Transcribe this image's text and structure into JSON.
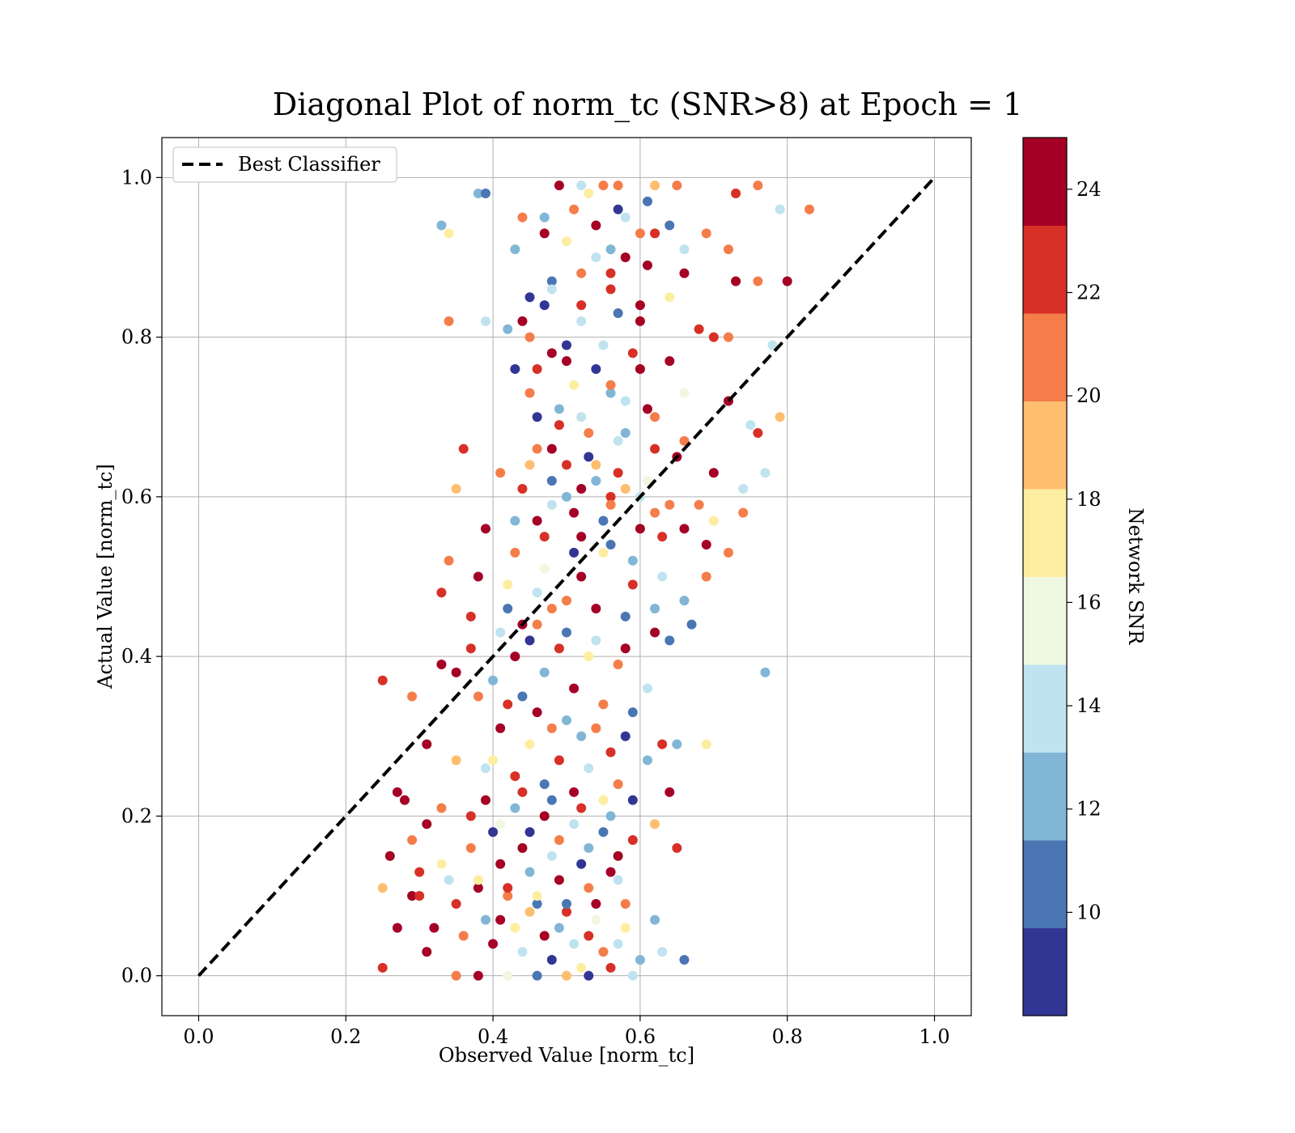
{
  "chart_data": {
    "type": "scatter",
    "title": "Diagonal Plot of norm_tc (SNR>8) at Epoch = 1",
    "xlabel": "Observed Value [norm_tc]",
    "ylabel": "Actual Value [norm_tc]",
    "xlim": [
      -0.05,
      1.05
    ],
    "ylim": [
      -0.05,
      1.05
    ],
    "x_ticks": [
      "0.0",
      "0.2",
      "0.4",
      "0.6",
      "0.8",
      "1.0"
    ],
    "y_ticks": [
      "0.0",
      "0.2",
      "0.4",
      "0.6",
      "0.8",
      "1.0"
    ],
    "grid": true,
    "legend": {
      "position": "top-left",
      "entries": [
        "Best Classifier"
      ]
    },
    "reference_line": {
      "name": "Best Classifier",
      "style": "dashed",
      "color": "#000000",
      "x": [
        0.0,
        1.0
      ],
      "y": [
        0.0,
        1.0
      ]
    },
    "colorbar": {
      "label": "Network SNR",
      "range": [
        8,
        25
      ],
      "ticks": [
        "10",
        "12",
        "14",
        "16",
        "18",
        "20",
        "22",
        "24"
      ],
      "colors": [
        "#313695",
        "#4a76b4",
        "#81b6d6",
        "#bfe3ef",
        "#eff8e0",
        "#fdeda0",
        "#fdbe6f",
        "#f57d4a",
        "#d73027",
        "#a50026"
      ]
    },
    "points": [
      [
        0.52,
        0.99,
        14
      ],
      [
        0.55,
        0.99,
        20
      ],
      [
        0.57,
        0.99,
        20
      ],
      [
        0.62,
        0.99,
        19
      ],
      [
        0.65,
        0.99,
        21
      ],
      [
        0.76,
        0.99,
        20
      ],
      [
        0.49,
        0.99,
        24
      ],
      [
        0.53,
        0.98,
        17
      ],
      [
        0.38,
        0.98,
        12
      ],
      [
        0.39,
        0.98,
        10
      ],
      [
        0.57,
        0.96,
        9
      ],
      [
        0.61,
        0.97,
        10
      ],
      [
        0.64,
        0.94,
        10
      ],
      [
        0.83,
        0.96,
        20
      ],
      [
        0.79,
        0.96,
        14
      ],
      [
        0.73,
        0.98,
        22
      ],
      [
        0.44,
        0.95,
        21
      ],
      [
        0.47,
        0.93,
        24
      ],
      [
        0.51,
        0.96,
        20
      ],
      [
        0.33,
        0.94,
        12
      ],
      [
        0.34,
        0.93,
        18
      ],
      [
        0.43,
        0.91,
        12
      ],
      [
        0.54,
        0.9,
        14
      ],
      [
        0.58,
        0.9,
        24
      ],
      [
        0.66,
        0.91,
        14
      ],
      [
        0.69,
        0.93,
        20
      ],
      [
        0.72,
        0.91,
        21
      ],
      [
        0.45,
        0.85,
        9
      ],
      [
        0.48,
        0.87,
        10
      ],
      [
        0.56,
        0.88,
        22
      ],
      [
        0.61,
        0.89,
        24
      ],
      [
        0.66,
        0.88,
        24
      ],
      [
        0.73,
        0.87,
        24
      ],
      [
        0.76,
        0.87,
        21
      ],
      [
        0.8,
        0.87,
        24
      ],
      [
        0.47,
        0.84,
        9
      ],
      [
        0.52,
        0.84,
        22
      ],
      [
        0.57,
        0.83,
        10
      ],
      [
        0.6,
        0.82,
        24
      ],
      [
        0.68,
        0.81,
        22
      ],
      [
        0.34,
        0.82,
        21
      ],
      [
        0.39,
        0.82,
        14
      ],
      [
        0.42,
        0.81,
        12
      ],
      [
        0.45,
        0.8,
        20
      ],
      [
        0.5,
        0.79,
        9
      ],
      [
        0.55,
        0.79,
        14
      ],
      [
        0.59,
        0.78,
        22
      ],
      [
        0.64,
        0.77,
        24
      ],
      [
        0.7,
        0.8,
        22
      ],
      [
        0.72,
        0.8,
        21
      ],
      [
        0.78,
        0.79,
        14
      ],
      [
        0.43,
        0.76,
        9
      ],
      [
        0.46,
        0.76,
        22
      ],
      [
        0.51,
        0.74,
        18
      ],
      [
        0.56,
        0.73,
        12
      ],
      [
        0.61,
        0.71,
        24
      ],
      [
        0.66,
        0.73,
        16
      ],
      [
        0.72,
        0.72,
        24
      ],
      [
        0.75,
        0.69,
        14
      ],
      [
        0.79,
        0.7,
        19
      ],
      [
        0.46,
        0.7,
        9
      ],
      [
        0.49,
        0.69,
        22
      ],
      [
        0.53,
        0.68,
        20
      ],
      [
        0.57,
        0.67,
        14
      ],
      [
        0.62,
        0.66,
        22
      ],
      [
        0.66,
        0.67,
        21
      ],
      [
        0.7,
        0.63,
        24
      ],
      [
        0.76,
        0.68,
        22
      ],
      [
        0.77,
        0.63,
        14
      ],
      [
        0.36,
        0.66,
        22
      ],
      [
        0.41,
        0.63,
        21
      ],
      [
        0.45,
        0.64,
        19
      ],
      [
        0.48,
        0.62,
        10
      ],
      [
        0.52,
        0.61,
        24
      ],
      [
        0.56,
        0.6,
        22
      ],
      [
        0.6,
        0.6,
        14
      ],
      [
        0.64,
        0.59,
        20
      ],
      [
        0.68,
        0.59,
        20
      ],
      [
        0.74,
        0.58,
        21
      ],
      [
        0.35,
        0.61,
        19
      ],
      [
        0.39,
        0.56,
        24
      ],
      [
        0.43,
        0.57,
        12
      ],
      [
        0.47,
        0.55,
        22
      ],
      [
        0.51,
        0.53,
        9
      ],
      [
        0.55,
        0.53,
        18
      ],
      [
        0.59,
        0.52,
        12
      ],
      [
        0.63,
        0.55,
        22
      ],
      [
        0.69,
        0.54,
        24
      ],
      [
        0.72,
        0.53,
        20
      ],
      [
        0.34,
        0.52,
        21
      ],
      [
        0.38,
        0.5,
        24
      ],
      [
        0.42,
        0.49,
        18
      ],
      [
        0.46,
        0.48,
        14
      ],
      [
        0.5,
        0.47,
        20
      ],
      [
        0.54,
        0.46,
        24
      ],
      [
        0.58,
        0.45,
        10
      ],
      [
        0.62,
        0.43,
        24
      ],
      [
        0.66,
        0.47,
        12
      ],
      [
        0.69,
        0.5,
        21
      ],
      [
        0.33,
        0.48,
        22
      ],
      [
        0.37,
        0.45,
        22
      ],
      [
        0.41,
        0.43,
        14
      ],
      [
        0.45,
        0.42,
        9
      ],
      [
        0.49,
        0.41,
        22
      ],
      [
        0.53,
        0.4,
        18
      ],
      [
        0.57,
        0.39,
        20
      ],
      [
        0.61,
        0.36,
        14
      ],
      [
        0.64,
        0.42,
        10
      ],
      [
        0.77,
        0.38,
        12
      ],
      [
        0.35,
        0.38,
        24
      ],
      [
        0.38,
        0.35,
        20
      ],
      [
        0.42,
        0.34,
        22
      ],
      [
        0.46,
        0.33,
        24
      ],
      [
        0.5,
        0.32,
        12
      ],
      [
        0.54,
        0.31,
        21
      ],
      [
        0.58,
        0.3,
        9
      ],
      [
        0.63,
        0.29,
        22
      ],
      [
        0.65,
        0.29,
        12
      ],
      [
        0.69,
        0.29,
        18
      ],
      [
        0.25,
        0.37,
        22
      ],
      [
        0.29,
        0.35,
        21
      ],
      [
        0.31,
        0.29,
        24
      ],
      [
        0.35,
        0.27,
        19
      ],
      [
        0.39,
        0.26,
        14
      ],
      [
        0.43,
        0.25,
        22
      ],
      [
        0.47,
        0.24,
        10
      ],
      [
        0.51,
        0.23,
        24
      ],
      [
        0.55,
        0.22,
        18
      ],
      [
        0.59,
        0.22,
        9
      ],
      [
        0.64,
        0.23,
        24
      ],
      [
        0.27,
        0.23,
        24
      ],
      [
        0.28,
        0.22,
        24
      ],
      [
        0.33,
        0.21,
        21
      ],
      [
        0.37,
        0.2,
        22
      ],
      [
        0.41,
        0.19,
        16
      ],
      [
        0.45,
        0.18,
        9
      ],
      [
        0.49,
        0.17,
        20
      ],
      [
        0.53,
        0.16,
        12
      ],
      [
        0.57,
        0.15,
        24
      ],
      [
        0.62,
        0.19,
        19
      ],
      [
        0.26,
        0.15,
        24
      ],
      [
        0.3,
        0.13,
        22
      ],
      [
        0.34,
        0.12,
        14
      ],
      [
        0.38,
        0.11,
        24
      ],
      [
        0.42,
        0.1,
        20
      ],
      [
        0.46,
        0.09,
        10
      ],
      [
        0.5,
        0.08,
        22
      ],
      [
        0.54,
        0.07,
        16
      ],
      [
        0.58,
        0.09,
        21
      ],
      [
        0.65,
        0.16,
        22
      ],
      [
        0.25,
        0.11,
        19
      ],
      [
        0.29,
        0.1,
        24
      ],
      [
        0.32,
        0.06,
        24
      ],
      [
        0.36,
        0.05,
        20
      ],
      [
        0.4,
        0.04,
        24
      ],
      [
        0.44,
        0.03,
        14
      ],
      [
        0.48,
        0.02,
        9
      ],
      [
        0.52,
        0.01,
        18
      ],
      [
        0.56,
        0.01,
        22
      ],
      [
        0.6,
        0.02,
        12
      ],
      [
        0.25,
        0.01,
        22
      ],
      [
        0.27,
        0.06,
        24
      ],
      [
        0.31,
        0.03,
        24
      ],
      [
        0.35,
        0.0,
        20
      ],
      [
        0.38,
        0.0,
        24
      ],
      [
        0.42,
        0.0,
        16
      ],
      [
        0.46,
        0.0,
        10
      ],
      [
        0.5,
        0.0,
        19
      ],
      [
        0.53,
        0.0,
        9
      ],
      [
        0.59,
        0.0,
        14
      ],
      [
        0.63,
        0.03,
        14
      ],
      [
        0.66,
        0.02,
        10
      ],
      [
        0.33,
        0.39,
        24
      ],
      [
        0.37,
        0.41,
        22
      ],
      [
        0.4,
        0.37,
        12
      ],
      [
        0.44,
        0.44,
        24
      ],
      [
        0.48,
        0.46,
        20
      ],
      [
        0.52,
        0.5,
        24
      ],
      [
        0.56,
        0.54,
        10
      ],
      [
        0.6,
        0.56,
        24
      ],
      [
        0.44,
        0.61,
        22
      ],
      [
        0.48,
        0.66,
        24
      ],
      [
        0.52,
        0.7,
        14
      ],
      [
        0.56,
        0.74,
        20
      ],
      [
        0.6,
        0.76,
        24
      ],
      [
        0.48,
        0.78,
        24
      ],
      [
        0.52,
        0.82,
        14
      ],
      [
        0.56,
        0.86,
        22
      ],
      [
        0.6,
        0.93,
        21
      ],
      [
        0.5,
        0.92,
        18
      ],
      [
        0.54,
        0.94,
        24
      ],
      [
        0.58,
        0.95,
        14
      ],
      [
        0.62,
        0.93,
        22
      ],
      [
        0.47,
        0.95,
        12
      ],
      [
        0.45,
        0.73,
        21
      ],
      [
        0.49,
        0.71,
        12
      ],
      [
        0.53,
        0.65,
        9
      ],
      [
        0.57,
        0.63,
        22
      ],
      [
        0.61,
        0.62,
        16
      ],
      [
        0.65,
        0.65,
        24
      ],
      [
        0.43,
        0.53,
        21
      ],
      [
        0.47,
        0.51,
        16
      ],
      [
        0.51,
        0.58,
        24
      ],
      [
        0.55,
        0.57,
        10
      ],
      [
        0.59,
        0.49,
        22
      ],
      [
        0.63,
        0.5,
        14
      ],
      [
        0.67,
        0.44,
        10
      ],
      [
        0.43,
        0.4,
        24
      ],
      [
        0.47,
        0.38,
        12
      ],
      [
        0.51,
        0.36,
        24
      ],
      [
        0.55,
        0.34,
        20
      ],
      [
        0.59,
        0.33,
        10
      ],
      [
        0.41,
        0.31,
        24
      ],
      [
        0.45,
        0.29,
        18
      ],
      [
        0.49,
        0.27,
        22
      ],
      [
        0.53,
        0.26,
        14
      ],
      [
        0.57,
        0.24,
        20
      ],
      [
        0.61,
        0.27,
        12
      ],
      [
        0.39,
        0.22,
        24
      ],
      [
        0.43,
        0.21,
        12
      ],
      [
        0.47,
        0.2,
        24
      ],
      [
        0.51,
        0.19,
        14
      ],
      [
        0.55,
        0.18,
        10
      ],
      [
        0.59,
        0.17,
        22
      ],
      [
        0.37,
        0.16,
        20
      ],
      [
        0.41,
        0.14,
        24
      ],
      [
        0.45,
        0.13,
        12
      ],
      [
        0.49,
        0.12,
        24
      ],
      [
        0.53,
        0.11,
        20
      ],
      [
        0.57,
        0.12,
        14
      ],
      [
        0.35,
        0.09,
        22
      ],
      [
        0.39,
        0.07,
        12
      ],
      [
        0.43,
        0.06,
        18
      ],
      [
        0.47,
        0.05,
        24
      ],
      [
        0.51,
        0.04,
        14
      ],
      [
        0.55,
        0.03,
        20
      ],
      [
        0.33,
        0.14,
        18
      ],
      [
        0.31,
        0.19,
        24
      ],
      [
        0.29,
        0.17,
        21
      ],
      [
        0.3,
        0.1,
        22
      ],
      [
        0.5,
        0.6,
        12
      ],
      [
        0.54,
        0.64,
        19
      ],
      [
        0.58,
        0.68,
        12
      ],
      [
        0.46,
        0.57,
        24
      ],
      [
        0.42,
        0.46,
        10
      ],
      [
        0.46,
        0.44,
        21
      ],
      [
        0.5,
        0.43,
        10
      ],
      [
        0.54,
        0.42,
        14
      ],
      [
        0.58,
        0.41,
        24
      ],
      [
        0.62,
        0.46,
        12
      ],
      [
        0.52,
        0.55,
        24
      ],
      [
        0.56,
        0.59,
        20
      ],
      [
        0.48,
        0.59,
        14
      ],
      [
        0.44,
        0.35,
        10
      ],
      [
        0.48,
        0.31,
        21
      ],
      [
        0.52,
        0.3,
        12
      ],
      [
        0.56,
        0.28,
        22
      ],
      [
        0.4,
        0.27,
        18
      ],
      [
        0.44,
        0.23,
        22
      ],
      [
        0.48,
        0.22,
        10
      ],
      [
        0.52,
        0.21,
        22
      ],
      [
        0.56,
        0.2,
        12
      ],
      [
        0.4,
        0.18,
        9
      ],
      [
        0.44,
        0.16,
        24
      ],
      [
        0.48,
        0.15,
        14
      ],
      [
        0.52,
        0.14,
        9
      ],
      [
        0.56,
        0.13,
        24
      ],
      [
        0.38,
        0.12,
        18
      ],
      [
        0.42,
        0.11,
        22
      ],
      [
        0.46,
        0.1,
        18
      ],
      [
        0.5,
        0.09,
        10
      ],
      [
        0.54,
        0.09,
        24
      ],
      [
        0.58,
        0.06,
        18
      ],
      [
        0.62,
        0.07,
        12
      ],
      [
        0.41,
        0.07,
        24
      ],
      [
        0.45,
        0.08,
        19
      ],
      [
        0.49,
        0.06,
        12
      ],
      [
        0.53,
        0.05,
        22
      ],
      [
        0.57,
        0.04,
        14
      ],
      [
        0.44,
        0.82,
        24
      ],
      [
        0.48,
        0.86,
        14
      ],
      [
        0.52,
        0.88,
        20
      ],
      [
        0.56,
        0.91,
        12
      ],
      [
        0.6,
        0.84,
        24
      ],
      [
        0.64,
        0.85,
        18
      ],
      [
        0.5,
        0.77,
        24
      ],
      [
        0.54,
        0.76,
        9
      ],
      [
        0.58,
        0.72,
        14
      ],
      [
        0.62,
        0.7,
        20
      ],
      [
        0.46,
        0.66,
        20
      ],
      [
        0.5,
        0.64,
        22
      ],
      [
        0.54,
        0.62,
        12
      ],
      [
        0.58,
        0.61,
        19
      ],
      [
        0.62,
        0.58,
        21
      ],
      [
        0.66,
        0.56,
        24
      ],
      [
        0.7,
        0.57,
        18
      ],
      [
        0.74,
        0.61,
        14
      ]
    ]
  }
}
